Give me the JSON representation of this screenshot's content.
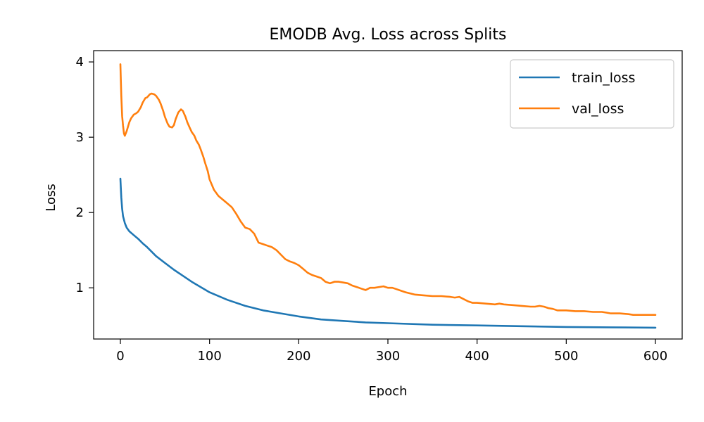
{
  "chart_data": {
    "type": "line",
    "title": "EMODB Avg. Loss across Splits",
    "xlabel": "Epoch",
    "ylabel": "Loss",
    "xlim": [
      -30,
      630
    ],
    "ylim": [
      0.32,
      4.15
    ],
    "xticks": [
      0,
      100,
      200,
      300,
      400,
      500,
      600
    ],
    "yticks": [
      1,
      2,
      3,
      4
    ],
    "grid": false,
    "legend_position": "top-right",
    "series": [
      {
        "name": "train_loss",
        "color": "#1f77b4",
        "x": [
          0,
          1,
          2,
          3,
          5,
          7,
          10,
          15,
          20,
          25,
          30,
          40,
          50,
          60,
          70,
          80,
          90,
          100,
          120,
          140,
          160,
          180,
          200,
          225,
          250,
          275,
          300,
          350,
          400,
          450,
          500,
          550,
          600
        ],
        "y": [
          2.45,
          2.2,
          2.05,
          1.95,
          1.86,
          1.8,
          1.75,
          1.7,
          1.65,
          1.59,
          1.54,
          1.42,
          1.33,
          1.24,
          1.16,
          1.08,
          1.01,
          0.94,
          0.84,
          0.76,
          0.7,
          0.66,
          0.62,
          0.58,
          0.56,
          0.54,
          0.53,
          0.51,
          0.5,
          0.49,
          0.48,
          0.475,
          0.47
        ]
      },
      {
        "name": "val_loss",
        "color": "#ff7f0e",
        "x": [
          0,
          1,
          2,
          3,
          4,
          5,
          7,
          10,
          12,
          15,
          18,
          20,
          23,
          25,
          28,
          30,
          33,
          35,
          38,
          40,
          43,
          45,
          48,
          50,
          53,
          55,
          58,
          60,
          62,
          65,
          68,
          70,
          73,
          75,
          78,
          80,
          83,
          85,
          88,
          90,
          93,
          95,
          98,
          100,
          105,
          110,
          115,
          120,
          125,
          130,
          135,
          140,
          145,
          150,
          155,
          160,
          165,
          170,
          175,
          180,
          185,
          190,
          195,
          200,
          205,
          210,
          215,
          220,
          225,
          230,
          235,
          240,
          245,
          250,
          255,
          260,
          265,
          270,
          275,
          280,
          285,
          290,
          295,
          300,
          305,
          310,
          315,
          320,
          330,
          340,
          350,
          360,
          370,
          375,
          380,
          385,
          390,
          395,
          400,
          410,
          420,
          425,
          430,
          440,
          450,
          460,
          465,
          470,
          475,
          480,
          485,
          490,
          500,
          510,
          520,
          530,
          540,
          545,
          550,
          560,
          570,
          575,
          580,
          590,
          600
        ],
        "y": [
          3.97,
          3.55,
          3.28,
          3.15,
          3.05,
          3.02,
          3.08,
          3.2,
          3.25,
          3.3,
          3.32,
          3.34,
          3.4,
          3.46,
          3.52,
          3.53,
          3.57,
          3.58,
          3.57,
          3.55,
          3.5,
          3.45,
          3.35,
          3.27,
          3.18,
          3.14,
          3.13,
          3.16,
          3.24,
          3.33,
          3.37,
          3.35,
          3.27,
          3.2,
          3.12,
          3.07,
          3.02,
          2.96,
          2.9,
          2.84,
          2.74,
          2.66,
          2.55,
          2.44,
          2.3,
          2.22,
          2.17,
          2.12,
          2.07,
          1.98,
          1.88,
          1.8,
          1.78,
          1.72,
          1.6,
          1.58,
          1.56,
          1.54,
          1.5,
          1.44,
          1.38,
          1.35,
          1.33,
          1.3,
          1.25,
          1.2,
          1.17,
          1.15,
          1.13,
          1.08,
          1.06,
          1.08,
          1.08,
          1.07,
          1.06,
          1.03,
          1.01,
          0.99,
          0.97,
          1.0,
          1.0,
          1.01,
          1.02,
          1.0,
          1.0,
          0.98,
          0.96,
          0.94,
          0.91,
          0.9,
          0.89,
          0.89,
          0.88,
          0.87,
          0.88,
          0.85,
          0.82,
          0.8,
          0.8,
          0.79,
          0.78,
          0.79,
          0.78,
          0.77,
          0.76,
          0.75,
          0.75,
          0.76,
          0.75,
          0.73,
          0.72,
          0.7,
          0.7,
          0.69,
          0.69,
          0.68,
          0.68,
          0.67,
          0.66,
          0.66,
          0.65,
          0.64,
          0.64,
          0.64,
          0.64
        ]
      }
    ]
  }
}
